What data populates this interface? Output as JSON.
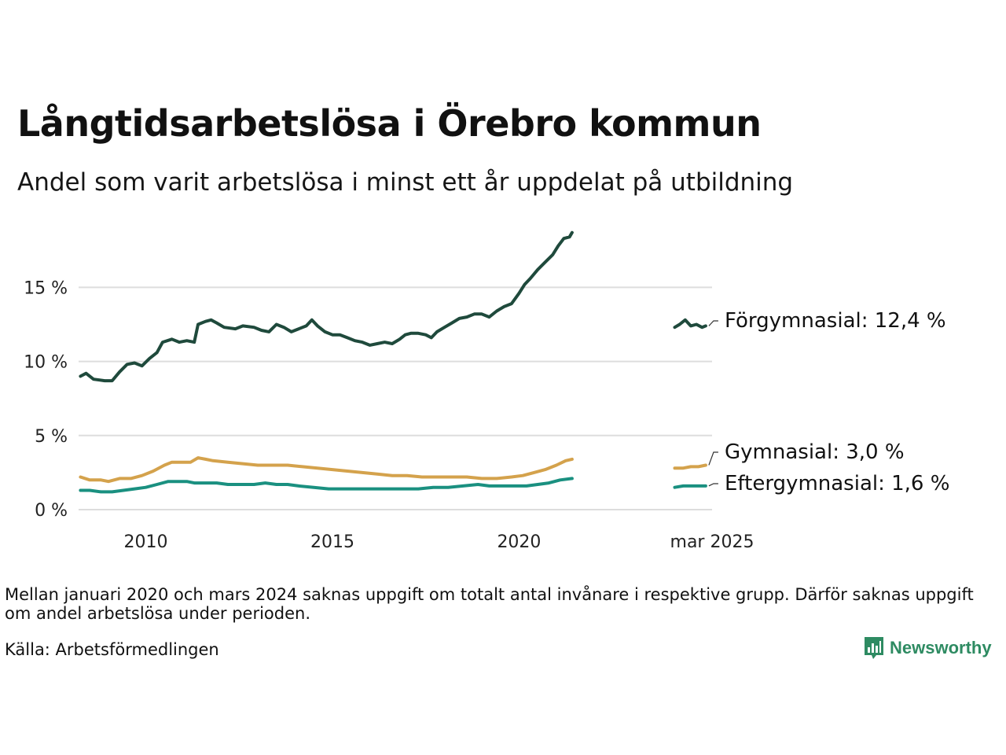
{
  "header": {
    "title": "Långtidsarbetslösa i Örebro kommun",
    "subtitle": "Andel som varit arbetslösa i minst ett år uppdelat på utbildning"
  },
  "footer": {
    "note": "Mellan januari 2020 och mars 2024 saknas uppgift om totalt antal invånare i respektive grupp. Därför saknas uppgift om andel arbetslösa under perioden.",
    "source": "Källa: Arbetsförmedlingen",
    "brand": "Newsworthy",
    "brand_icon": "newsworthy-logo-icon"
  },
  "colors": {
    "forgymnasial": "#1f4a3c",
    "gymnasial": "#d4a24c",
    "eftergymnasial": "#1a9080",
    "grid": "#dddddd"
  },
  "chart_data": {
    "type": "line",
    "title": "Långtidsarbetslösa i Örebro kommun",
    "subtitle": "Andel som varit arbetslösa i minst ett år uppdelat på utbildning",
    "xlabel": "",
    "ylabel": "",
    "x_ticks": [
      {
        "x": 2010,
        "label": "2010"
      },
      {
        "x": 2015,
        "label": "2015"
      },
      {
        "x": 2020,
        "label": "2020"
      },
      {
        "x": 2025.17,
        "label": "mar 2025"
      }
    ],
    "y_ticks": [
      {
        "y": 0,
        "label": "0 %"
      },
      {
        "y": 5,
        "label": "5 %"
      },
      {
        "y": 10,
        "label": "10 %"
      },
      {
        "y": 15,
        "label": "15 %"
      }
    ],
    "xlim": [
      2008.2,
      2025.17
    ],
    "ylim": [
      0,
      19
    ],
    "grid": true,
    "series": [
      {
        "key": "forgymnasial",
        "name": "Förgymnasial",
        "end_label": "Förgymnasial: 12,4 %",
        "segments": [
          [
            [
              2008.25,
              9.0
            ],
            [
              2008.4,
              9.2
            ],
            [
              2008.6,
              8.8
            ],
            [
              2008.9,
              8.7
            ],
            [
              2009.1,
              8.7
            ],
            [
              2009.3,
              9.3
            ],
            [
              2009.5,
              9.8
            ],
            [
              2009.7,
              9.9
            ],
            [
              2009.9,
              9.7
            ],
            [
              2010.1,
              10.2
            ],
            [
              2010.3,
              10.6
            ],
            [
              2010.45,
              11.3
            ],
            [
              2010.7,
              11.5
            ],
            [
              2010.9,
              11.3
            ],
            [
              2011.1,
              11.4
            ],
            [
              2011.3,
              11.3
            ],
            [
              2011.4,
              12.5
            ],
            [
              2011.6,
              12.7
            ],
            [
              2011.75,
              12.8
            ],
            [
              2011.9,
              12.6
            ],
            [
              2012.1,
              12.3
            ],
            [
              2012.4,
              12.2
            ],
            [
              2012.6,
              12.4
            ],
            [
              2012.9,
              12.3
            ],
            [
              2013.1,
              12.1
            ],
            [
              2013.3,
              12.0
            ],
            [
              2013.5,
              12.5
            ],
            [
              2013.7,
              12.3
            ],
            [
              2013.9,
              12.0
            ],
            [
              2014.1,
              12.2
            ],
            [
              2014.3,
              12.4
            ],
            [
              2014.45,
              12.8
            ],
            [
              2014.6,
              12.4
            ],
            [
              2014.8,
              12.0
            ],
            [
              2015.0,
              11.8
            ],
            [
              2015.2,
              11.8
            ],
            [
              2015.4,
              11.6
            ],
            [
              2015.6,
              11.4
            ],
            [
              2015.8,
              11.3
            ],
            [
              2016.0,
              11.1
            ],
            [
              2016.2,
              11.2
            ],
            [
              2016.4,
              11.3
            ],
            [
              2016.6,
              11.2
            ],
            [
              2016.8,
              11.5
            ],
            [
              2016.95,
              11.8
            ],
            [
              2017.1,
              11.9
            ],
            [
              2017.3,
              11.9
            ],
            [
              2017.5,
              11.8
            ],
            [
              2017.65,
              11.6
            ],
            [
              2017.8,
              12.0
            ],
            [
              2018.0,
              12.3
            ],
            [
              2018.2,
              12.6
            ],
            [
              2018.4,
              12.9
            ],
            [
              2018.6,
              13.0
            ],
            [
              2018.8,
              13.2
            ],
            [
              2019.0,
              13.2
            ],
            [
              2019.2,
              13.0
            ],
            [
              2019.4,
              13.4
            ],
            [
              2019.6,
              13.7
            ],
            [
              2019.8,
              13.9
            ],
            [
              2020.0,
              14.6
            ],
            [
              2020.15,
              15.2
            ],
            [
              2020.3,
              15.6
            ],
            [
              2020.5,
              16.2
            ],
            [
              2020.7,
              16.7
            ],
            [
              2020.9,
              17.2
            ],
            [
              2021.05,
              17.8
            ],
            [
              2021.2,
              18.3
            ],
            [
              2021.35,
              18.4
            ],
            [
              2021.42,
              18.7
            ]
          ],
          [
            [
              2024.17,
              12.3
            ],
            [
              2024.3,
              12.5
            ],
            [
              2024.45,
              12.8
            ],
            [
              2024.6,
              12.4
            ],
            [
              2024.75,
              12.5
            ],
            [
              2024.9,
              12.3
            ],
            [
              2025.0,
              12.4
            ]
          ]
        ]
      },
      {
        "key": "gymnasial",
        "name": "Gymnasial",
        "end_label": "Gymnasial:  3,0 %",
        "segments": [
          [
            [
              2008.25,
              2.2
            ],
            [
              2008.5,
              2.0
            ],
            [
              2008.8,
              2.0
            ],
            [
              2009.0,
              1.9
            ],
            [
              2009.3,
              2.1
            ],
            [
              2009.6,
              2.1
            ],
            [
              2009.9,
              2.3
            ],
            [
              2010.2,
              2.6
            ],
            [
              2010.5,
              3.0
            ],
            [
              2010.7,
              3.2
            ],
            [
              2010.9,
              3.2
            ],
            [
              2011.2,
              3.2
            ],
            [
              2011.4,
              3.5
            ],
            [
              2011.6,
              3.4
            ],
            [
              2011.8,
              3.3
            ],
            [
              2012.2,
              3.2
            ],
            [
              2012.6,
              3.1
            ],
            [
              2013.0,
              3.0
            ],
            [
              2013.4,
              3.0
            ],
            [
              2013.8,
              3.0
            ],
            [
              2014.2,
              2.9
            ],
            [
              2014.6,
              2.8
            ],
            [
              2015.0,
              2.7
            ],
            [
              2015.4,
              2.6
            ],
            [
              2015.8,
              2.5
            ],
            [
              2016.2,
              2.4
            ],
            [
              2016.6,
              2.3
            ],
            [
              2017.0,
              2.3
            ],
            [
              2017.4,
              2.2
            ],
            [
              2017.8,
              2.2
            ],
            [
              2018.2,
              2.2
            ],
            [
              2018.6,
              2.2
            ],
            [
              2019.0,
              2.1
            ],
            [
              2019.4,
              2.1
            ],
            [
              2019.8,
              2.2
            ],
            [
              2020.1,
              2.3
            ],
            [
              2020.4,
              2.5
            ],
            [
              2020.7,
              2.7
            ],
            [
              2021.0,
              3.0
            ],
            [
              2021.25,
              3.3
            ],
            [
              2021.42,
              3.4
            ]
          ],
          [
            [
              2024.17,
              2.8
            ],
            [
              2024.4,
              2.8
            ],
            [
              2024.6,
              2.9
            ],
            [
              2024.8,
              2.9
            ],
            [
              2025.0,
              3.0
            ]
          ]
        ]
      },
      {
        "key": "eftergymnasial",
        "name": "Eftergymnasial",
        "end_label": "Eftergymnasial:  1,6 %",
        "segments": [
          [
            [
              2008.25,
              1.3
            ],
            [
              2008.5,
              1.3
            ],
            [
              2008.8,
              1.2
            ],
            [
              2009.1,
              1.2
            ],
            [
              2009.4,
              1.3
            ],
            [
              2009.7,
              1.4
            ],
            [
              2010.0,
              1.5
            ],
            [
              2010.3,
              1.7
            ],
            [
              2010.6,
              1.9
            ],
            [
              2010.9,
              1.9
            ],
            [
              2011.1,
              1.9
            ],
            [
              2011.3,
              1.8
            ],
            [
              2011.6,
              1.8
            ],
            [
              2011.9,
              1.8
            ],
            [
              2012.2,
              1.7
            ],
            [
              2012.6,
              1.7
            ],
            [
              2012.9,
              1.7
            ],
            [
              2013.2,
              1.8
            ],
            [
              2013.5,
              1.7
            ],
            [
              2013.8,
              1.7
            ],
            [
              2014.1,
              1.6
            ],
            [
              2014.5,
              1.5
            ],
            [
              2014.9,
              1.4
            ],
            [
              2015.3,
              1.4
            ],
            [
              2015.7,
              1.4
            ],
            [
              2016.1,
              1.4
            ],
            [
              2016.5,
              1.4
            ],
            [
              2016.9,
              1.4
            ],
            [
              2017.3,
              1.4
            ],
            [
              2017.7,
              1.5
            ],
            [
              2018.1,
              1.5
            ],
            [
              2018.5,
              1.6
            ],
            [
              2018.9,
              1.7
            ],
            [
              2019.2,
              1.6
            ],
            [
              2019.5,
              1.6
            ],
            [
              2019.9,
              1.6
            ],
            [
              2020.2,
              1.6
            ],
            [
              2020.5,
              1.7
            ],
            [
              2020.8,
              1.8
            ],
            [
              2021.1,
              2.0
            ],
            [
              2021.42,
              2.1
            ]
          ],
          [
            [
              2024.17,
              1.5
            ],
            [
              2024.4,
              1.6
            ],
            [
              2024.6,
              1.6
            ],
            [
              2024.8,
              1.6
            ],
            [
              2025.0,
              1.6
            ]
          ]
        ]
      }
    ]
  }
}
